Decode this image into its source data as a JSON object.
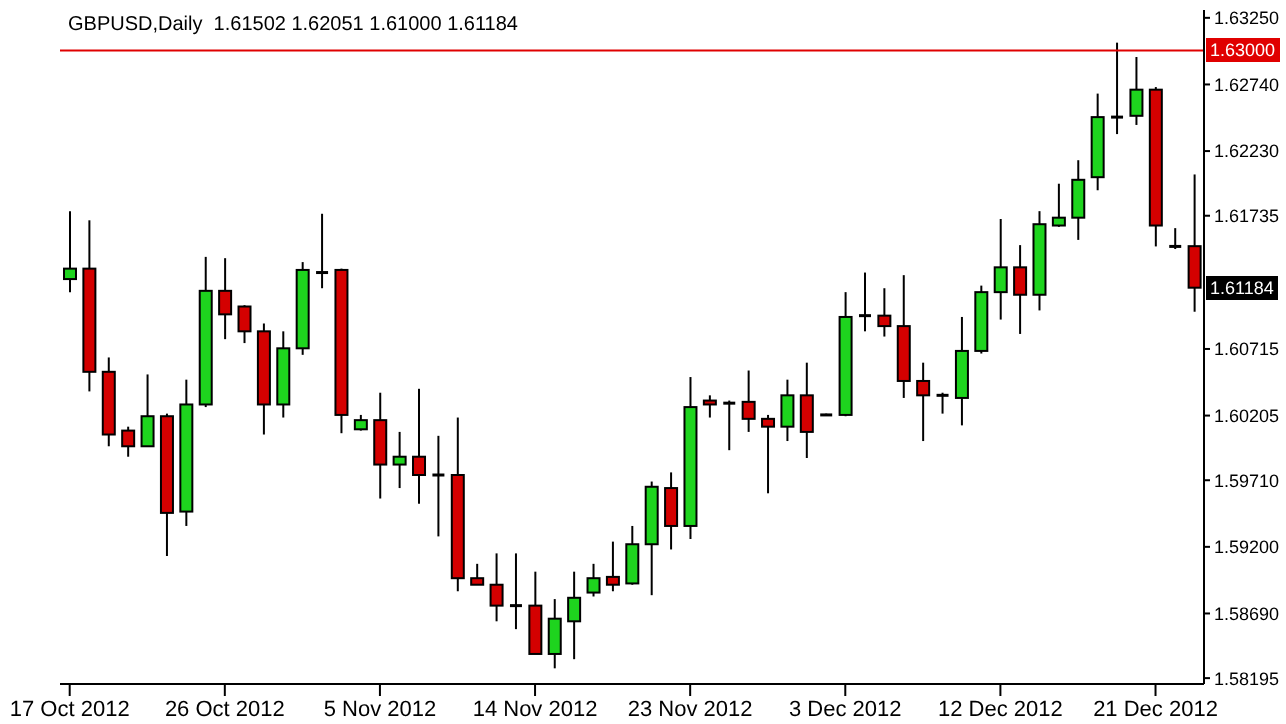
{
  "chart_data": {
    "type": "candlestick",
    "title": "GBPUSD,Daily  1.61502 1.62051 1.61000 1.61184",
    "categories": [
      "17 Oct 2012",
      null,
      null,
      null,
      null,
      null,
      null,
      null,
      "26 Oct 2012",
      null,
      null,
      null,
      null,
      null,
      null,
      null,
      "5 Nov 2012",
      null,
      null,
      null,
      null,
      null,
      null,
      null,
      "14 Nov 2012",
      null,
      null,
      null,
      null,
      null,
      null,
      null,
      "23 Nov 2012",
      null,
      null,
      null,
      null,
      null,
      null,
      null,
      "3 Dec 2012",
      null,
      null,
      null,
      null,
      null,
      null,
      null,
      "12 Dec 2012",
      null,
      null,
      null,
      null,
      null,
      null,
      null,
      "21 Dec 2012",
      null,
      null
    ],
    "ohlc": [
      [
        1.6125,
        1.6177,
        1.6115,
        1.6133
      ],
      [
        1.6133,
        1.617,
        1.6039,
        1.6054
      ],
      [
        1.6054,
        1.6065,
        1.5997,
        1.6006
      ],
      [
        1.6009,
        1.6012,
        1.5989,
        1.5997
      ],
      [
        1.5997,
        1.6052,
        1.5997,
        1.602
      ],
      [
        1.602,
        1.6022,
        1.5913,
        1.5946
      ],
      [
        1.5947,
        1.6048,
        1.5936,
        1.6029
      ],
      [
        1.6029,
        1.6142,
        1.6027,
        1.6116
      ],
      [
        1.6116,
        1.6141,
        1.6079,
        1.6098
      ],
      [
        1.6104,
        1.6105,
        1.6076,
        1.6085
      ],
      [
        1.6085,
        1.6091,
        1.6006,
        1.6029
      ],
      [
        1.6029,
        1.6085,
        1.6019,
        1.6072
      ],
      [
        1.6072,
        1.6138,
        1.6067,
        1.6132
      ],
      [
        1.6131,
        1.6175,
        1.6118,
        1.613
      ],
      [
        1.6132,
        1.6133,
        1.6007,
        1.6021
      ],
      [
        1.601,
        1.6021,
        1.6009,
        1.6017
      ],
      [
        1.6017,
        1.6038,
        1.5957,
        1.5983
      ],
      [
        1.5983,
        1.6008,
        1.5965,
        1.5989
      ],
      [
        1.5989,
        1.6041,
        1.5953,
        1.5975
      ],
      [
        1.5975,
        1.6005,
        1.5928,
        1.5975
      ],
      [
        1.5975,
        1.6019,
        1.5886,
        1.5896
      ],
      [
        1.5896,
        1.5907,
        1.5891,
        1.5891
      ],
      [
        1.5891,
        1.5915,
        1.5863,
        1.5875
      ],
      [
        1.5875,
        1.5915,
        1.5857,
        1.5875
      ],
      [
        1.5875,
        1.5901,
        1.5838,
        1.5838
      ],
      [
        1.5838,
        1.588,
        1.5827,
        1.5865
      ],
      [
        1.5863,
        1.5901,
        1.5834,
        1.5881
      ],
      [
        1.5885,
        1.5907,
        1.5882,
        1.5896
      ],
      [
        1.5897,
        1.5924,
        1.5886,
        1.5891
      ],
      [
        1.5892,
        1.5936,
        1.5891,
        1.5922
      ],
      [
        1.5922,
        1.597,
        1.5883,
        1.5966
      ],
      [
        1.5965,
        1.5977,
        1.5918,
        1.5936
      ],
      [
        1.5936,
        1.605,
        1.5926,
        1.6027
      ],
      [
        1.6032,
        1.6036,
        1.6019,
        1.6029
      ],
      [
        1.603,
        1.6032,
        1.5994,
        1.603
      ],
      [
        1.6031,
        1.6055,
        1.6008,
        1.6018
      ],
      [
        1.6018,
        1.6021,
        1.5961,
        1.6012
      ],
      [
        1.6012,
        1.6048,
        1.6001,
        1.6036
      ],
      [
        1.6036,
        1.6061,
        1.5988,
        1.6008
      ],
      [
        1.6021,
        1.6022,
        1.6021,
        1.6021
      ],
      [
        1.6021,
        1.6115,
        1.602,
        1.6096
      ],
      [
        1.6097,
        1.613,
        1.6085,
        1.6097
      ],
      [
        1.6097,
        1.6118,
        1.6081,
        1.6089
      ],
      [
        1.6089,
        1.6128,
        1.6034,
        1.6047
      ],
      [
        1.6047,
        1.6061,
        1.6001,
        1.6036
      ],
      [
        1.6036,
        1.6038,
        1.6022,
        1.6036
      ],
      [
        1.6034,
        1.6096,
        1.6013,
        1.607
      ],
      [
        1.607,
        1.612,
        1.6068,
        1.6115
      ],
      [
        1.6115,
        1.6171,
        1.6094,
        1.6134
      ],
      [
        1.6134,
        1.6151,
        1.6083,
        1.6113
      ],
      [
        1.6113,
        1.6177,
        1.6101,
        1.6167
      ],
      [
        1.6166,
        1.6198,
        1.6165,
        1.6172
      ],
      [
        1.6172,
        1.6216,
        1.6155,
        1.6201
      ],
      [
        1.6203,
        1.6267,
        1.6193,
        1.6249
      ],
      [
        1.6249,
        1.6306,
        1.6236,
        1.6249
      ],
      [
        1.625,
        1.6295,
        1.6243,
        1.627
      ],
      [
        1.627,
        1.6272,
        1.615,
        1.6166
      ],
      [
        1.615,
        1.6164,
        1.6148,
        1.615
      ],
      [
        1.61502,
        1.62051,
        1.61,
        1.61184
      ]
    ],
    "colors": [
      "#1ed41e",
      "#d40000",
      "#d40000",
      "#d40000",
      "#1ed41e",
      "#d40000",
      "#1ed41e",
      "#1ed41e",
      "#d40000",
      "#d40000",
      "#d40000",
      "#1ed41e",
      "#1ed41e",
      "#000000",
      "#d40000",
      "#1ed41e",
      "#d40000",
      "#1ed41e",
      "#d40000",
      "#000000",
      "#d40000",
      "#d40000",
      "#d40000",
      "#000000",
      "#d40000",
      "#1ed41e",
      "#1ed41e",
      "#1ed41e",
      "#d40000",
      "#1ed41e",
      "#1ed41e",
      "#d40000",
      "#1ed41e",
      "#d40000",
      "#000000",
      "#d40000",
      "#d40000",
      "#1ed41e",
      "#d40000",
      "#000000",
      "#1ed41e",
      "#000000",
      "#d40000",
      "#d40000",
      "#d40000",
      "#000000",
      "#1ed41e",
      "#1ed41e",
      "#1ed41e",
      "#d40000",
      "#1ed41e",
      "#1ed41e",
      "#1ed41e",
      "#1ed41e",
      "#000000",
      "#1ed41e",
      "#d40000",
      "#000000",
      "#d40000"
    ],
    "ylim": [
      1.5815,
      1.6331
    ],
    "yticks": [
      {
        "value": 1.6325,
        "label": "1.63250"
      },
      {
        "value": 1.6274,
        "label": "1.62740"
      },
      {
        "value": 1.6223,
        "label": "1.62230"
      },
      {
        "value": 1.61735,
        "label": "1.61735"
      },
      {
        "value": 1.60715,
        "label": "1.60715"
      },
      {
        "value": 1.60205,
        "label": "1.60205"
      },
      {
        "value": 1.5971,
        "label": "1.59710"
      },
      {
        "value": 1.592,
        "label": "1.59200"
      },
      {
        "value": 1.5869,
        "label": "1.58690"
      },
      {
        "value": 1.58195,
        "label": "1.58195"
      }
    ],
    "ref_lines": [
      {
        "axis": "y",
        "value": 1.63,
        "label": "1.63000",
        "color": "#e00000"
      }
    ],
    "annotations": [
      {
        "text": "1.61184",
        "y": 1.61184
      }
    ],
    "tick_labels": true
  }
}
